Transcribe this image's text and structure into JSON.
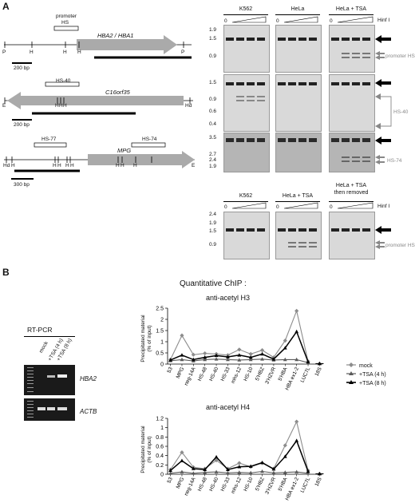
{
  "panel_a": {
    "letter": "A",
    "maps": {
      "hba2": {
        "gene": "HBA2 / HBA1",
        "promoter_label": "promoter",
        "hs_label": "HS",
        "sites": [
          "P",
          "H",
          "H",
          "H",
          "P"
        ],
        "scale": "200 bp"
      },
      "c16": {
        "gene": "C16orf35",
        "hs_label": "HS-40",
        "sites": [
          "E",
          "H",
          "H",
          "H",
          "Hd"
        ],
        "scale": "200 bp"
      },
      "mpg": {
        "gene": "MPG",
        "hs_left": "HS-77",
        "hs_right": "HS-74",
        "sites": [
          "Hd",
          "H",
          "H",
          "H",
          "H",
          "H",
          "H",
          "H",
          "H",
          "E"
        ],
        "scale": "300 bp"
      }
    },
    "blots_top": {
      "headers": [
        "K562",
        "HeLa",
        "HeLa + TSA"
      ],
      "zero": "0",
      "enzyme": "Hinf I",
      "rows": [
        {
          "markers": [
            "1.9",
            "1.5",
            "0.9"
          ],
          "label": "promoter HS"
        },
        {
          "markers": [
            "1.5",
            "0.9",
            "0.6",
            "0.4"
          ],
          "label": "HS-40"
        },
        {
          "markers": [
            "3.5",
            "2.7",
            "2.4",
            "1.9"
          ],
          "label": "HS-74"
        }
      ]
    },
    "blots_bottom": {
      "headers": [
        "K562",
        "HeLa + TSA",
        "HeLa + TSA\nthen removed"
      ],
      "zero": "0",
      "enzyme": "Hinf I",
      "markers": [
        "2.4",
        "1.9",
        "1.5",
        "0.9"
      ],
      "label": "promoter HS"
    }
  },
  "panel_b": {
    "letter": "B",
    "rtpcr": {
      "title": "RT-PCR",
      "lanes": [
        "mock",
        "+TSA (4 h)",
        "+TSA (8 h)"
      ],
      "genes": [
        "HBA2",
        "ACTB"
      ]
    },
    "chip_title": "Quantitative ChIP :",
    "legend": {
      "items": [
        "mock",
        "+TSA (4 h)",
        "+TSA (8 h)"
      ],
      "colors": [
        "#8c8c8c",
        "#5a5a5a",
        "#000000"
      ]
    }
  },
  "chart_data": [
    {
      "type": "line",
      "title": "anti-acetyl H3",
      "ylabel": "Precipitated material\n(% of input)",
      "xlabel": "",
      "ylim": [
        0,
        2.5
      ],
      "yticks": [
        "0",
        "0.5",
        "1",
        "1.5",
        "2",
        "2.5"
      ],
      "categories": [
        "53",
        "MPG",
        "neg-14A",
        "HS-48",
        "HS-40",
        "HS-33",
        "mhs-12",
        "HS-10",
        "5'HBZ",
        "3'HZVR",
        "5'HBA",
        "HBA ex1-2",
        "LUC7L",
        "18S"
      ],
      "series": [
        {
          "name": "mock",
          "values": [
            0.2,
            1.28,
            0.42,
            0.48,
            0.45,
            0.4,
            0.65,
            0.45,
            0.62,
            0.3,
            1.05,
            2.38,
            0.12,
            0.02
          ]
        },
        {
          "name": "+TSA (4 h)",
          "values": [
            0.15,
            0.2,
            0.14,
            0.2,
            0.22,
            0.2,
            0.18,
            0.2,
            0.22,
            0.18,
            0.2,
            0.2,
            0.06,
            0.02
          ]
        },
        {
          "name": "+TSA (8 h)",
          "values": [
            0.18,
            0.4,
            0.2,
            0.3,
            0.38,
            0.32,
            0.4,
            0.3,
            0.45,
            0.22,
            0.72,
            1.45,
            0.1,
            0.02
          ]
        }
      ]
    },
    {
      "type": "line",
      "title": "anti-acetyl H4",
      "ylabel": "Precipitated material\n(% of input)",
      "xlabel": "",
      "ylim": [
        0,
        1.2
      ],
      "yticks": [
        "0",
        "0.2",
        "0.4",
        "0.6",
        "0.8",
        "1",
        "1.2"
      ],
      "categories": [
        "53",
        "MPG",
        "neg-14A",
        "HS-48",
        "HS-40",
        "HS-33",
        "mhs-12",
        "HS-10",
        "5'HBZ",
        "3'HZVR",
        "5'HBA",
        "HBA ex1-2",
        "LUC7L",
        "18S"
      ],
      "series": [
        {
          "name": "mock",
          "values": [
            0.1,
            0.47,
            0.15,
            0.12,
            0.3,
            0.12,
            0.24,
            0.16,
            0.24,
            0.12,
            0.62,
            1.13,
            0.08,
            0.01
          ]
        },
        {
          "name": "+TSA (4 h)",
          "values": [
            0.02,
            0.05,
            0.02,
            0.04,
            0.05,
            0.03,
            0.04,
            0.03,
            0.06,
            0.03,
            0.04,
            0.05,
            0.02,
            0.01
          ]
        },
        {
          "name": "+TSA (8 h)",
          "values": [
            0.08,
            0.29,
            0.12,
            0.1,
            0.37,
            0.1,
            0.16,
            0.17,
            0.25,
            0.11,
            0.38,
            0.72,
            0.06,
            0.01
          ]
        }
      ]
    }
  ]
}
